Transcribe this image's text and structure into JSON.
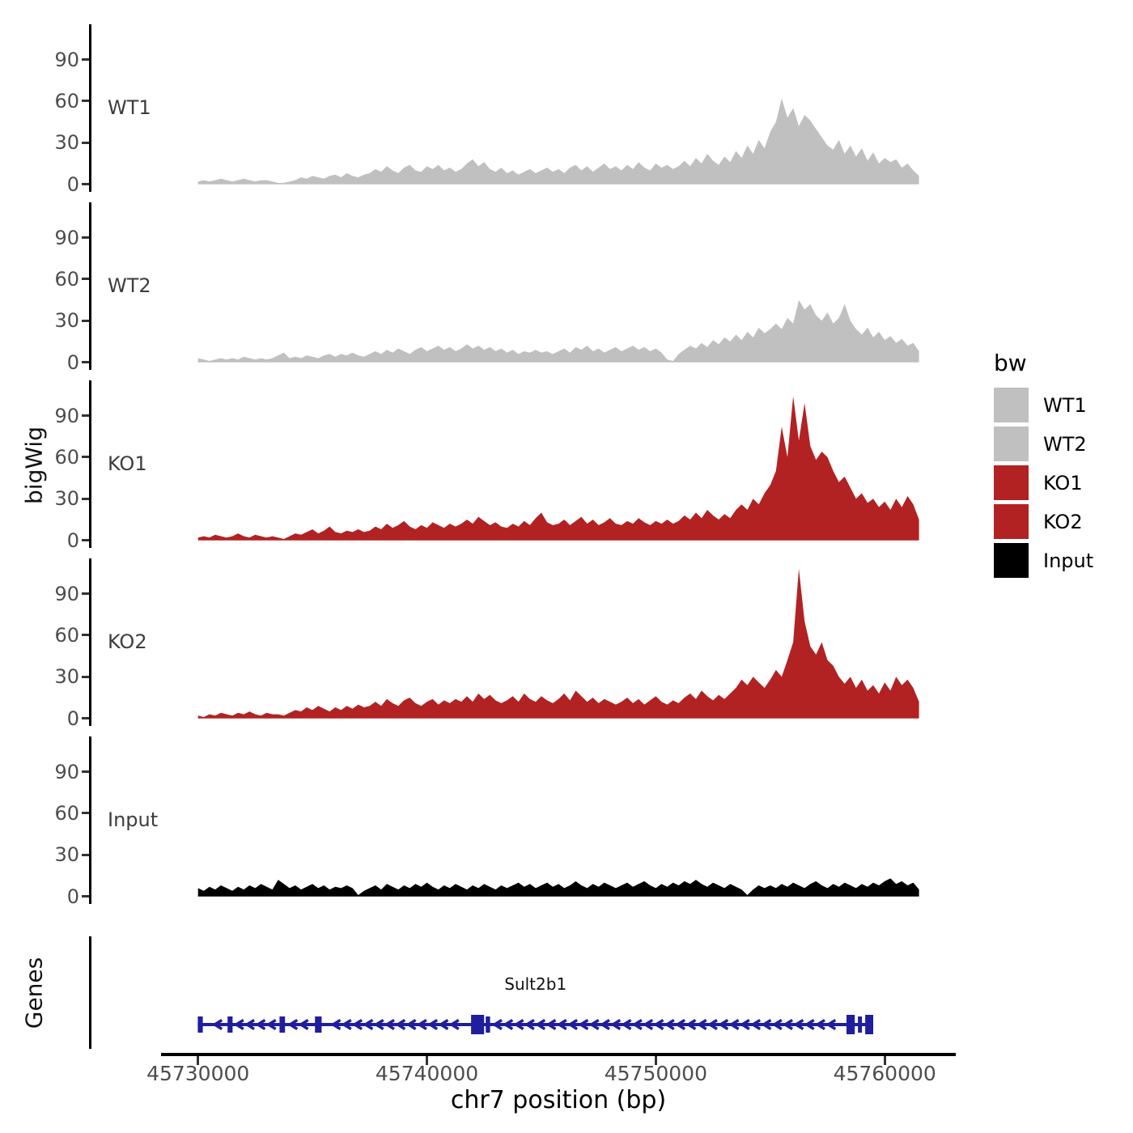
{
  "figure": {
    "y_axis_title": "bigWig",
    "genes_axis_title": "Genes",
    "x_axis_title": "chr7 position (bp)",
    "x_ticks": [
      {
        "bp": 45730000,
        "label": "45730000"
      },
      {
        "bp": 45740000,
        "label": "45740000"
      },
      {
        "bp": 45750000,
        "label": "45750000"
      },
      {
        "bp": 45760000,
        "label": "45760000"
      }
    ]
  },
  "legend": {
    "title": "bw",
    "entries": [
      {
        "label": "WT1",
        "color": "#c0c0c0"
      },
      {
        "label": "WT2",
        "color": "#c0c0c0"
      },
      {
        "label": "KO1",
        "color": "#b22222"
      },
      {
        "label": "KO2",
        "color": "#b22222"
      },
      {
        "label": "Input",
        "color": "#000000"
      }
    ]
  },
  "chart_data": {
    "type": "area",
    "title": "",
    "xlabel": "chr7 position (bp)",
    "ylabel": "bigWig",
    "x_start": 45730000,
    "x_step": 250,
    "x_axis_range": [
      45728400,
      45763300
    ],
    "y_ticks": [
      0,
      30,
      60,
      90
    ],
    "ylim": [
      0,
      115
    ],
    "grid": false,
    "legend_position": "right",
    "facets": [
      "WT1",
      "WT2",
      "KO1",
      "KO2",
      "Input"
    ],
    "series": [
      {
        "name": "WT1",
        "color": "#c0c0c0",
        "values": [
          2,
          3,
          2,
          3,
          4,
          3,
          2,
          3,
          4,
          3,
          2,
          3,
          3,
          2,
          1,
          1,
          2,
          3,
          5,
          4,
          6,
          5,
          4,
          6,
          7,
          5,
          8,
          6,
          5,
          7,
          8,
          11,
          9,
          13,
          10,
          8,
          12,
          14,
          10,
          9,
          13,
          11,
          14,
          10,
          12,
          9,
          11,
          15,
          18,
          13,
          16,
          11,
          9,
          12,
          8,
          10,
          7,
          9,
          11,
          8,
          10,
          12,
          9,
          11,
          8,
          12,
          14,
          10,
          13,
          9,
          12,
          15,
          11,
          13,
          10,
          14,
          11,
          16,
          12,
          10,
          15,
          12,
          14,
          11,
          13,
          17,
          13,
          19,
          15,
          22,
          17,
          14,
          20,
          16,
          24,
          19,
          28,
          22,
          32,
          26,
          38,
          45,
          62,
          48,
          55,
          42,
          50,
          46,
          40,
          34,
          28,
          25,
          32,
          22,
          28,
          20,
          26,
          17,
          23,
          15,
          19,
          16,
          18,
          12,
          15,
          10,
          6
        ]
      },
      {
        "name": "WT2",
        "color": "#c0c0c0",
        "values": [
          3,
          2,
          1,
          2,
          3,
          2,
          3,
          2,
          4,
          3,
          2,
          3,
          2,
          3,
          5,
          7,
          3,
          4,
          3,
          5,
          4,
          3,
          5,
          6,
          4,
          6,
          5,
          7,
          5,
          4,
          6,
          8,
          6,
          9,
          7,
          10,
          8,
          6,
          9,
          11,
          8,
          10,
          12,
          9,
          11,
          8,
          10,
          13,
          10,
          12,
          9,
          11,
          8,
          10,
          7,
          9,
          6,
          8,
          7,
          9,
          7,
          8,
          6,
          8,
          10,
          7,
          11,
          9,
          12,
          8,
          10,
          7,
          9,
          11,
          8,
          10,
          12,
          9,
          11,
          8,
          10,
          7,
          2,
          1,
          6,
          9,
          12,
          10,
          14,
          11,
          16,
          13,
          18,
          15,
          20,
          16,
          22,
          18,
          25,
          21,
          24,
          28,
          24,
          32,
          28,
          45,
          38,
          42,
          34,
          30,
          36,
          28,
          32,
          42,
          30,
          24,
          20,
          25,
          18,
          22,
          16,
          19,
          14,
          17,
          12,
          14,
          8
        ]
      },
      {
        "name": "KO1",
        "color": "#b22222",
        "values": [
          2,
          3,
          2,
          4,
          3,
          2,
          3,
          5,
          3,
          2,
          4,
          3,
          2,
          3,
          2,
          1,
          3,
          5,
          4,
          6,
          8,
          5,
          7,
          10,
          6,
          5,
          7,
          6,
          8,
          6,
          7,
          10,
          8,
          12,
          9,
          11,
          14,
          10,
          8,
          11,
          9,
          13,
          11,
          9,
          12,
          10,
          12,
          15,
          12,
          17,
          14,
          11,
          13,
          10,
          9,
          12,
          10,
          14,
          11,
          16,
          20,
          13,
          11,
          12,
          15,
          11,
          14,
          17,
          12,
          15,
          11,
          13,
          16,
          12,
          11,
          14,
          12,
          16,
          13,
          11,
          14,
          12,
          15,
          12,
          14,
          18,
          15,
          20,
          16,
          22,
          18,
          15,
          19,
          16,
          22,
          26,
          22,
          30,
          26,
          34,
          40,
          50,
          82,
          60,
          104,
          72,
          99,
          68,
          58,
          64,
          60,
          50,
          42,
          46,
          38,
          30,
          34,
          27,
          30,
          24,
          28,
          22,
          30,
          24,
          32,
          26,
          15
        ]
      },
      {
        "name": "KO2",
        "color": "#b22222",
        "values": [
          2,
          1,
          3,
          2,
          4,
          3,
          2,
          4,
          3,
          5,
          3,
          2,
          4,
          3,
          3,
          2,
          4,
          6,
          5,
          8,
          6,
          9,
          7,
          5,
          8,
          6,
          9,
          7,
          10,
          8,
          9,
          12,
          9,
          14,
          11,
          9,
          13,
          15,
          11,
          9,
          12,
          14,
          10,
          13,
          11,
          14,
          12,
          16,
          12,
          18,
          14,
          17,
          13,
          11,
          13,
          16,
          12,
          18,
          14,
          12,
          16,
          13,
          11,
          14,
          18,
          13,
          20,
          16,
          12,
          15,
          11,
          14,
          12,
          10,
          12,
          15,
          11,
          14,
          10,
          13,
          16,
          12,
          10,
          13,
          11,
          15,
          18,
          14,
          20,
          16,
          13,
          17,
          14,
          18,
          22,
          28,
          24,
          30,
          26,
          22,
          28,
          35,
          30,
          42,
          55,
          108,
          70,
          52,
          46,
          55,
          42,
          38,
          30,
          25,
          30,
          22,
          28,
          20,
          24,
          18,
          26,
          20,
          30,
          24,
          28,
          22,
          12
        ]
      },
      {
        "name": "Input",
        "color": "#000000",
        "values": [
          6,
          4,
          7,
          5,
          8,
          6,
          4,
          7,
          5,
          8,
          6,
          9,
          7,
          5,
          12,
          9,
          6,
          8,
          5,
          7,
          9,
          6,
          8,
          5,
          7,
          6,
          8,
          6,
          1,
          4,
          6,
          8,
          5,
          9,
          7,
          5,
          8,
          6,
          9,
          7,
          10,
          7,
          5,
          8,
          6,
          9,
          7,
          5,
          8,
          6,
          9,
          7,
          5,
          8,
          6,
          8,
          10,
          7,
          9,
          6,
          8,
          10,
          7,
          9,
          6,
          8,
          11,
          8,
          6,
          9,
          7,
          10,
          8,
          6,
          8,
          10,
          7,
          9,
          11,
          8,
          6,
          9,
          7,
          10,
          8,
          11,
          9,
          12,
          9,
          7,
          10,
          8,
          6,
          9,
          7,
          5,
          1,
          5,
          8,
          6,
          8,
          6,
          9,
          7,
          10,
          8,
          6,
          9,
          11,
          8,
          6,
          9,
          7,
          10,
          8,
          6,
          9,
          7,
          10,
          8,
          11,
          13,
          9,
          11,
          8,
          10,
          5
        ]
      }
    ],
    "gene_track": {
      "label": "Genes",
      "gene": {
        "name": "Sult2b1",
        "strand": "-",
        "start": 45729990,
        "end": 45759500,
        "color": "#1e1e9e",
        "exons": [
          {
            "start": 45729990,
            "end": 45730210,
            "thick": false
          },
          {
            "start": 45731290,
            "end": 45731510,
            "thick": false
          },
          {
            "start": 45733560,
            "end": 45733800,
            "thick": false
          },
          {
            "start": 45735110,
            "end": 45735400,
            "thick": false
          },
          {
            "start": 45741930,
            "end": 45742500,
            "thick": true
          },
          {
            "start": 45742570,
            "end": 45742760,
            "thick": false
          },
          {
            "start": 45758330,
            "end": 45758690,
            "thick": true
          },
          {
            "start": 45758830,
            "end": 45758970,
            "thick": false
          },
          {
            "start": 45759150,
            "end": 45759500,
            "thick": true
          }
        ]
      }
    }
  }
}
